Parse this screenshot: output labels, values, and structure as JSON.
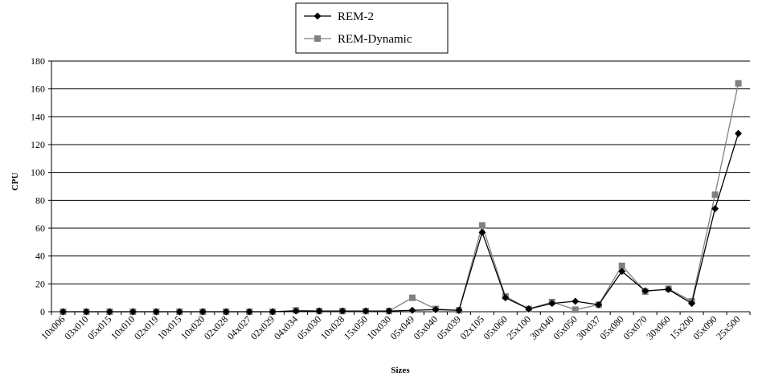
{
  "chart_data": {
    "type": "line",
    "title": "",
    "xlabel": "Sizes",
    "ylabel": "CPU",
    "ylim": [
      0,
      180
    ],
    "yticks": [
      0,
      20,
      40,
      60,
      80,
      100,
      120,
      140,
      160,
      180
    ],
    "grid": true,
    "legend_position": "top-center",
    "categories": [
      "10x006",
      "03x010",
      "05x015",
      "10x010",
      "02x019",
      "10x015",
      "10x020",
      "02x028",
      "04x027",
      "02x029",
      "04x034",
      "05x030",
      "10x028",
      "15x050",
      "10x030",
      "05x049",
      "05x040",
      "05x039",
      "02x105",
      "05x060",
      "25x100",
      "30x040",
      "05x050",
      "30x037",
      "05x080",
      "05x070",
      "30x060",
      "15x200",
      "05x090",
      "25x500"
    ],
    "series": [
      {
        "name": "REM-2",
        "color": "#000000",
        "marker": "diamond",
        "values": [
          0,
          0,
          0,
          0,
          0,
          0,
          0,
          0,
          0,
          0,
          0.5,
          0.5,
          0.5,
          0.5,
          0.5,
          1,
          1.5,
          1,
          57,
          10,
          2,
          6,
          7.5,
          5,
          29,
          15,
          16,
          6,
          74,
          128
        ]
      },
      {
        "name": "REM-Dynamic",
        "color": "#808080",
        "marker": "square",
        "values": [
          0,
          0,
          0,
          0,
          0,
          0,
          0,
          0,
          0,
          0,
          1,
          0.5,
          0.5,
          0.5,
          0.5,
          10,
          2,
          1,
          62,
          11,
          2,
          7,
          1.5,
          5,
          33,
          14.5,
          16.5,
          7.5,
          84,
          164
        ]
      }
    ]
  }
}
